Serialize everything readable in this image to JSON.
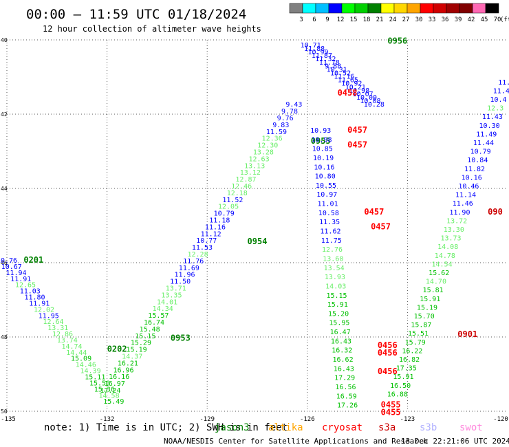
{
  "header": {
    "title": "00:00 – 11:59 UTC 01/18/2024",
    "subtitle": "12 hour collection of altimeter wave heights"
  },
  "colorbar": {
    "unit": "(ft)",
    "items": [
      {
        "label": "3",
        "color": "#808080"
      },
      {
        "label": "6",
        "color": "#00ffff"
      },
      {
        "label": "9",
        "color": "#00bfff"
      },
      {
        "label": "12",
        "color": "#0000ff"
      },
      {
        "label": "15",
        "color": "#00ff00"
      },
      {
        "label": "18",
        "color": "#00d000"
      },
      {
        "label": "21",
        "color": "#008000"
      },
      {
        "label": "24",
        "color": "#ffff00"
      },
      {
        "label": "27",
        "color": "#ffd700"
      },
      {
        "label": "30",
        "color": "#ffa500"
      },
      {
        "label": "33",
        "color": "#ff0000"
      },
      {
        "label": "36",
        "color": "#d00000"
      },
      {
        "label": "39",
        "color": "#a00000"
      },
      {
        "label": "42",
        "color": "#800000"
      },
      {
        "label": "45",
        "color": "#ff69b4"
      },
      {
        "label": "70",
        "color": "#000000"
      }
    ]
  },
  "footer": {
    "note": "note:  1) Time is in UTC; 2) SWH is in feet",
    "credit": "NOAA/NESDIS Center for Satellite Applications and Research",
    "timestamp": "13 Dec 22:21:06 UTC 2024",
    "satellites": [
      {
        "name": "jason3",
        "color": "#008000"
      },
      {
        "name": "altika",
        "color": "#ffa500"
      },
      {
        "name": "cryosat",
        "color": "#ff0000"
      },
      {
        "name": "s3a",
        "color": "#cc0000"
      },
      {
        "name": "s3b",
        "color": "#b0b0ff"
      },
      {
        "name": "swot",
        "color": "#ff88dd"
      }
    ]
  },
  "chart_data": {
    "type": "scatter",
    "xlim": [
      -135,
      -120
    ],
    "ylim": [
      40,
      50
    ],
    "y_inverted": true,
    "x_ticks": [
      "-135",
      "-132",
      "-129",
      "-126",
      "-123",
      "-120"
    ],
    "y_ticks": [
      "40",
      "42",
      "44",
      "46",
      "48",
      "50"
    ],
    "grid": true,
    "color_scale": {
      "blue_max": 12,
      "lightgreen_max": 15,
      "green_max": 18,
      "colors": {
        "blue": "#0000ff",
        "lightgreen": "#66ee66",
        "green": "#00c000"
      }
    },
    "tracks": [
      {
        "satellite": "jason3",
        "start": [
          -135,
          46.0
        ],
        "end": [
          -131.8,
          49.8
        ],
        "values": [
          "10.76",
          "10.67",
          "11.94",
          "11.91",
          "12.65",
          "11.03",
          "11.80",
          "11.91",
          "12.02",
          "11.95",
          "12.64",
          "13.31",
          "12.86",
          "13.74",
          "14.74",
          "14.44",
          "15.09",
          "14.46",
          "14.39",
          "15.11",
          "15.50",
          "15.36",
          "14.58",
          "15.49"
        ],
        "time_labels": [
          {
            "label": "0201",
            "lon": -134.2,
            "lat": 46.0
          },
          {
            "label": "0202",
            "lon": -131.7,
            "lat": 48.4
          }
        ]
      },
      {
        "satellite": "jason3",
        "start": [
          -126.4,
          41.8
        ],
        "end": [
          -131.9,
          49.5
        ],
        "values": [
          "9.43",
          "9.78",
          "9.76",
          "9.83",
          "11.59",
          "12.36",
          "12.30",
          "13.28",
          "12.63",
          "13.13",
          "13.12",
          "12.87",
          "12.46",
          "12.18",
          "11.52",
          "12.05",
          "10.79",
          "11.18",
          "11.16",
          "11.12",
          "10.77",
          "11.53",
          "12.28",
          "11.76",
          "11.69",
          "11.96",
          "11.50",
          "13.71",
          "13.35",
          "14.01",
          "14.34",
          "15.57",
          "16.74",
          "15.48",
          "15.15",
          "15.29",
          "15.19",
          "14.37",
          "16.21",
          "16.96",
          "16.16",
          "16.97",
          "17.24"
        ],
        "time_labels": [
          {
            "label": "0954",
            "lon": -127.5,
            "lat": 45.5
          },
          {
            "label": "0953",
            "lon": -129.8,
            "lat": 48.1
          }
        ]
      },
      {
        "satellite": "jason3",
        "start": [
          -125.9,
          40.2
        ],
        "end": [
          -124.0,
          41.8
        ],
        "values": [
          "10.71",
          "11.88",
          "10.99",
          "11.87",
          "11.32",
          "11.78",
          "9.88",
          "10.31",
          "10.52",
          "11.16",
          "11.65",
          "10.92",
          "10.21",
          "10.98",
          "10.07",
          "10.00",
          "10.08",
          "10.28"
        ],
        "time_labels": [
          {
            "label": "0956",
            "lon": -123.3,
            "lat": 40.1
          },
          {
            "label": "0955",
            "lon": -125.6,
            "lat": 42.8
          }
        ]
      },
      {
        "satellite": "cryosat",
        "start": [
          -125.6,
          42.5
        ],
        "end": [
          -124.8,
          49.9
        ],
        "values": [
          "10.93",
          "10.98",
          "10.85",
          "10.19",
          "10.16",
          "10.80",
          "10.55",
          "10.97",
          "11.01",
          "10.58",
          "11.35",
          "11.62",
          "11.75",
          "12.76",
          "13.60",
          "13.54",
          "13.93",
          "14.03",
          "15.15",
          "15.91",
          "15.20",
          "15.95",
          "16.47",
          "16.43",
          "16.32",
          "16.62",
          "16.43",
          "17.29",
          "16.56",
          "16.59",
          "17.26"
        ],
        "time_labels": [
          {
            "label": "0458",
            "lon": -124.8,
            "lat": 41.5
          },
          {
            "label": "0457",
            "lon": -124.5,
            "lat": 42.5
          },
          {
            "label": "0457",
            "lon": -124.5,
            "lat": 42.9
          },
          {
            "label": "0457",
            "lon": -124.0,
            "lat": 44.7
          },
          {
            "label": "0457",
            "lon": -123.8,
            "lat": 45.1
          },
          {
            "label": "0456",
            "lon": -123.6,
            "lat": 48.3
          },
          {
            "label": "0456",
            "lon": -123.6,
            "lat": 48.5
          },
          {
            "label": "0456",
            "lon": -123.6,
            "lat": 49.0
          },
          {
            "label": "0455",
            "lon": -123.5,
            "lat": 49.9
          },
          {
            "label": "0455",
            "lon": -123.5,
            "lat": 50.1
          }
        ]
      },
      {
        "satellite": "s3a",
        "start": [
          -120.1,
          41.2
        ],
        "end": [
          -123.3,
          49.6
        ],
        "values": [
          "11.",
          "11.4",
          "10.4",
          "12.3",
          "11.43",
          "10.30",
          "11.49",
          "11.44",
          "10.79",
          "10.84",
          "11.82",
          "10.16",
          "10.46",
          "11.14",
          "11.46",
          "11.90",
          "13.72",
          "13.30",
          "13.73",
          "14.08",
          "14.78",
          "14.54",
          "15.62",
          "14.70",
          "15.81",
          "15.91",
          "15.19",
          "15.70",
          "15.87",
          "15.51",
          "15.79",
          "16.22",
          "16.82",
          "17.35",
          "15.91",
          "16.50",
          "16.88"
        ],
        "time_labels": [
          {
            "label": "0901",
            "lon": -121.2,
            "lat": 48.0
          },
          {
            "label": "090",
            "lon": -120.3,
            "lat": 44.7
          }
        ]
      }
    ]
  }
}
